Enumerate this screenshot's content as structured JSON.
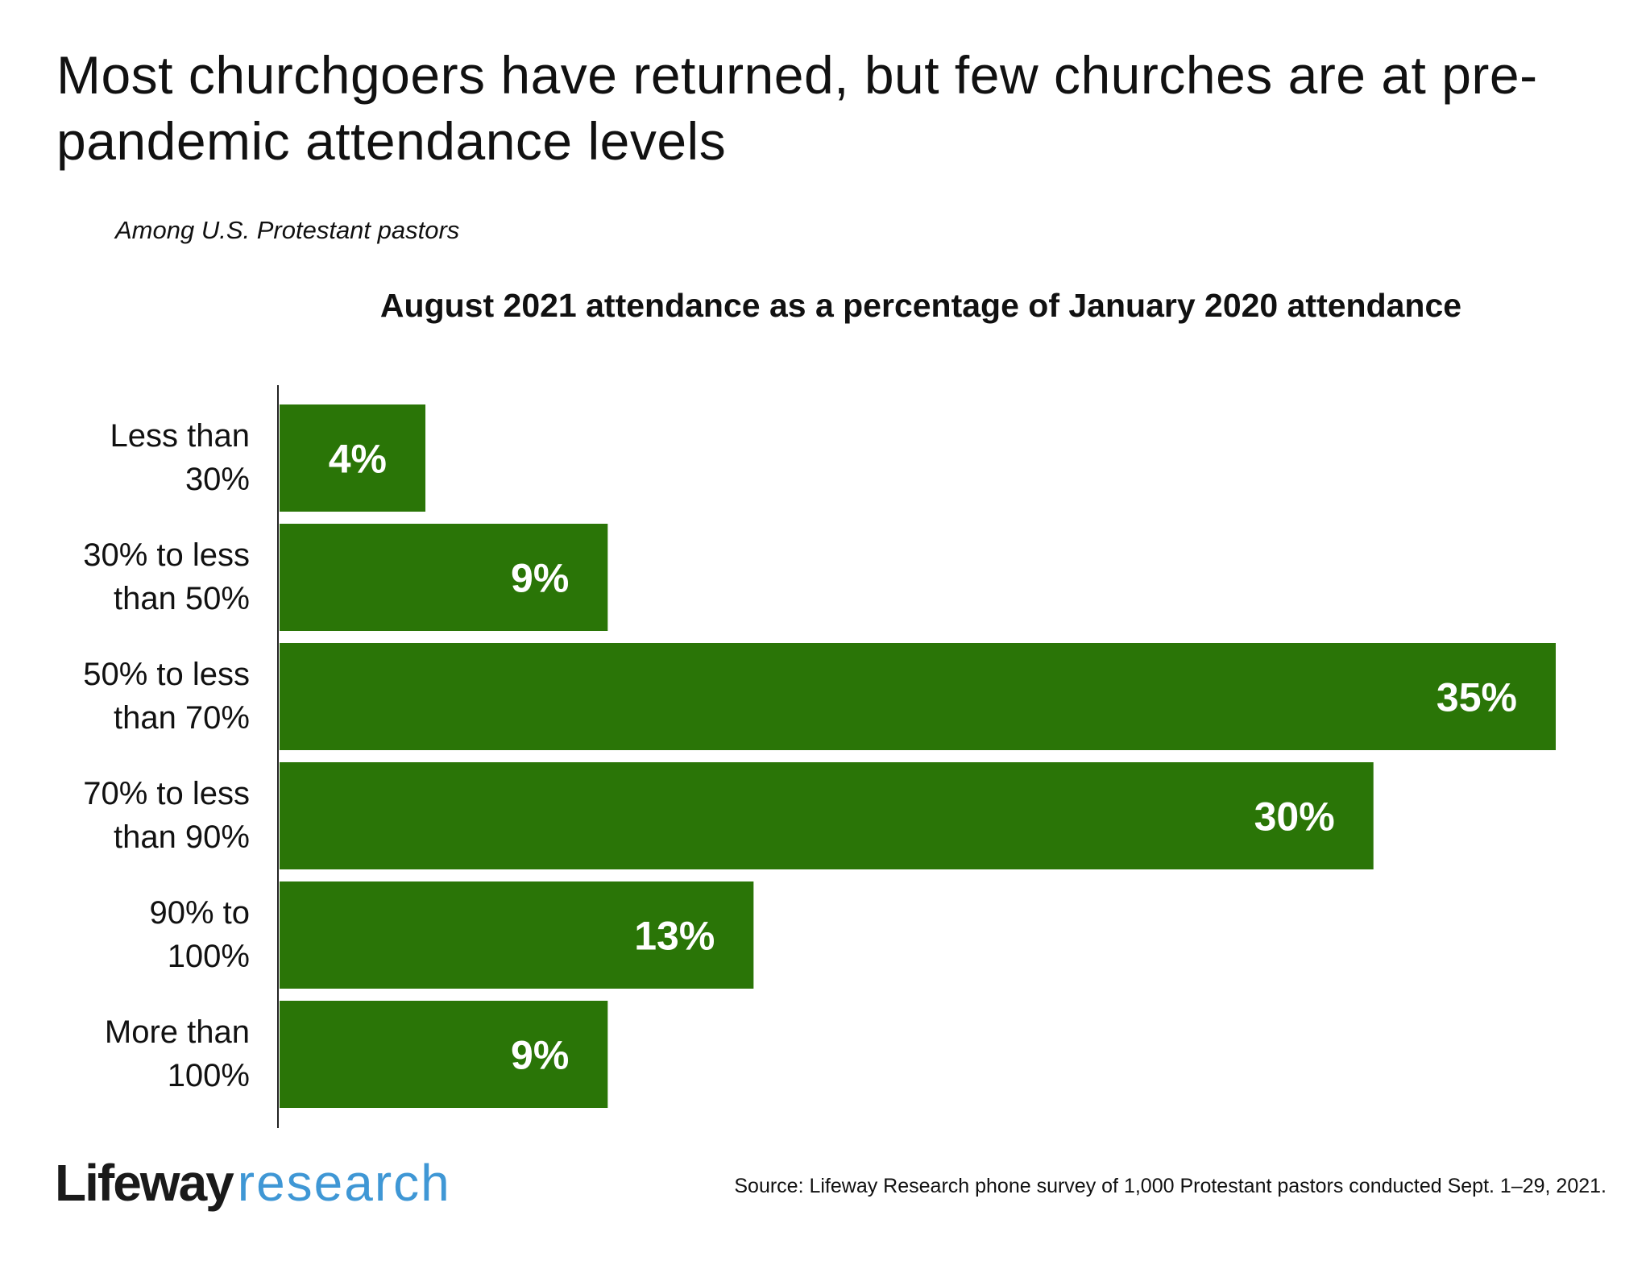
{
  "title": "Most churchgoers have returned, but few churches are at pre-pandemic attendance levels",
  "subtitle": "Among U.S. Protestant pastors",
  "chart_data": {
    "type": "bar",
    "orientation": "horizontal",
    "title": "August 2021 attendance as a percentage of January 2020 attendance",
    "categories": [
      [
        "Less than",
        "30%"
      ],
      [
        "30% to less",
        "than 50%"
      ],
      [
        "50% to less",
        "than 70%"
      ],
      [
        "70% to less",
        "than 90%"
      ],
      [
        "90% to",
        "100%"
      ],
      [
        "More than",
        "100%"
      ]
    ],
    "values": [
      4,
      9,
      35,
      30,
      13,
      9
    ],
    "value_labels": [
      "4%",
      "9%",
      "35%",
      "30%",
      "13%",
      "9%"
    ],
    "xlim": [
      0,
      35
    ],
    "bar_color": "#2a7507",
    "grid": false
  },
  "logo": {
    "brand": "Lifeway",
    "sub": "research",
    "sub_color": "#3f97d5"
  },
  "source": "Source: Lifeway Research phone survey of 1,000 Protestant pastors conducted Sept. 1–29, 2021."
}
